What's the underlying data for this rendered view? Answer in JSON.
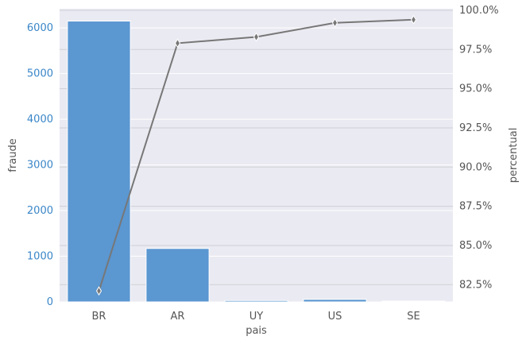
{
  "chart_data": {
    "type": "bar",
    "categories": [
      "BR",
      "AR",
      "UY",
      "US",
      "SE"
    ],
    "xlabel": "pais",
    "series": [
      {
        "name": "fraude",
        "axis": "left",
        "type": "bar",
        "values": [
          6150,
          1170,
          30,
          55,
          10
        ],
        "color": "#5b97d1"
      },
      {
        "name": "percentual",
        "axis": "right",
        "type": "line",
        "values": [
          82.1,
          97.9,
          98.3,
          99.2,
          99.4
        ],
        "color": "#777777"
      }
    ],
    "left_axis": {
      "label": "fraude",
      "ylim": [
        0,
        6420
      ],
      "ticks": [
        0,
        1000,
        2000,
        3000,
        4000,
        5000,
        6000
      ],
      "tick_labels": [
        "0",
        "1000",
        "2000",
        "3000",
        "4000",
        "5000",
        "6000"
      ],
      "color": "#3a86c8"
    },
    "right_axis": {
      "label": "percentual",
      "ylim": [
        81.4,
        100.1
      ],
      "ticks": [
        82.5,
        85.0,
        87.5,
        90.0,
        92.5,
        95.0,
        97.5,
        100.0
      ],
      "tick_labels": [
        "82.5%",
        "85.0%",
        "87.5%",
        "90.0%",
        "92.5%",
        "95.0%",
        "97.5%",
        "100.0%"
      ]
    },
    "grid": true,
    "background": "#eaeaf2"
  }
}
